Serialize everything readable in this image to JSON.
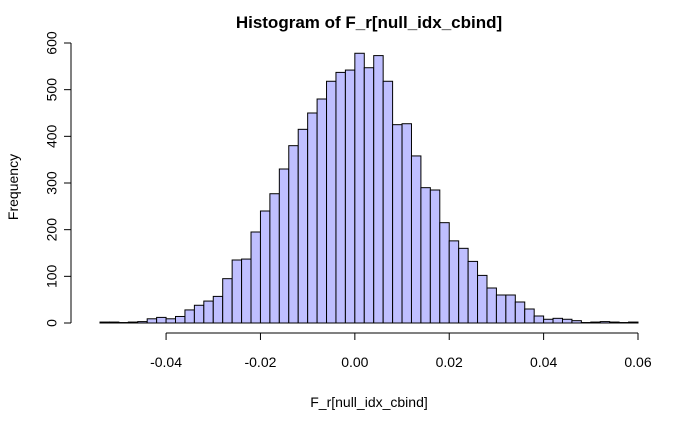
{
  "chart_data": {
    "type": "bar",
    "title": "Histogram of F_r[null_idx_cbind]",
    "xlabel": "F_r[null_idx_cbind]",
    "ylabel": "Frequency",
    "bar_color": "#bfbfff",
    "border_color": "#000000",
    "bin_start": -0.054,
    "bin_width": 0.002,
    "xlim": [
      -0.054,
      0.06
    ],
    "ylim": [
      0,
      600
    ],
    "x_ticks": [
      -0.04,
      -0.02,
      0.0,
      0.02,
      0.04,
      0.06
    ],
    "x_tick_labels": [
      "-0.04",
      "-0.02",
      "0.00",
      "0.02",
      "0.04",
      "0.06"
    ],
    "y_ticks": [
      0,
      100,
      200,
      300,
      400,
      500,
      600
    ],
    "y_tick_labels": [
      "0",
      "100",
      "200",
      "300",
      "400",
      "500",
      "600"
    ],
    "values": [
      2,
      2,
      1,
      2,
      3,
      9,
      12,
      9,
      14,
      28,
      38,
      47,
      57,
      95,
      135,
      137,
      195,
      240,
      277,
      330,
      380,
      415,
      450,
      480,
      518,
      537,
      542,
      578,
      547,
      573,
      518,
      425,
      427,
      358,
      290,
      285,
      215,
      176,
      160,
      132,
      102,
      75,
      60,
      60,
      45,
      30,
      15,
      8,
      10,
      8,
      5,
      1,
      2,
      3,
      2,
      1,
      2
    ]
  }
}
